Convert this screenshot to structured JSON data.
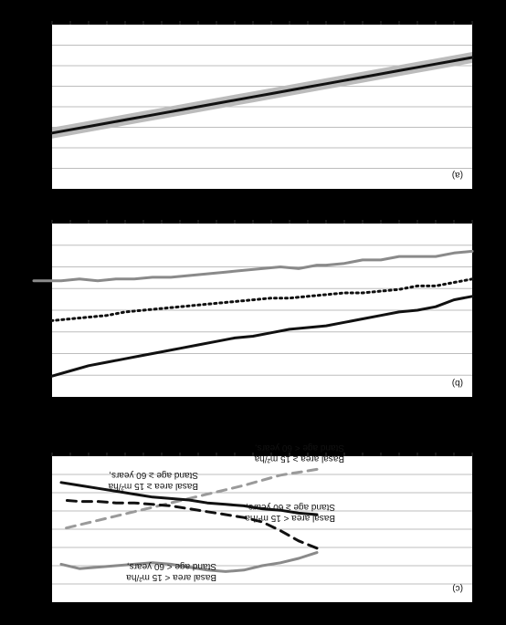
{
  "chart_data": [
    {
      "panel": "(c)",
      "type": "line",
      "ylim": [
        0,
        10
      ],
      "xlim": [
        0,
        46
      ],
      "grid": "horizontal",
      "rendering": "rotated-180",
      "series": [
        {
          "label": "Basal area ≥ 15 m²/ha Stand age < 60 years,",
          "style": "dashed-gray",
          "x": [
            17,
            21,
            25,
            29,
            33,
            37,
            41,
            45
          ],
          "y": [
            0.9,
            1.3,
            2.0,
            2.6,
            3.2,
            3.8,
            4.4,
            5.0
          ]
        },
        {
          "label": "Basal area ≥ 15 m²/ha Stand age ≥ 60 years,",
          "style": "solid-black",
          "x": [
            17,
            19,
            21,
            23,
            25,
            27,
            29,
            31,
            33,
            35,
            37,
            39,
            41,
            43,
            45
          ],
          "y": [
            4.0,
            3.9,
            3.7,
            3.6,
            3.4,
            3.3,
            3.2,
            3.0,
            2.9,
            2.8,
            2.6,
            2.4,
            2.2,
            2.0,
            1.8
          ]
        },
        {
          "label": "Basal area < 15 m²/ha Stand age ≥ 60 years,",
          "style": "dashed-black",
          "x": [
            17,
            19,
            21,
            23,
            25,
            27,
            29,
            31,
            33,
            35,
            37,
            39,
            41,
            43,
            45
          ],
          "y": [
            6.3,
            5.8,
            5.1,
            4.5,
            4.2,
            4.0,
            3.8,
            3.6,
            3.4,
            3.3,
            3.2,
            3.2,
            3.1,
            3.1,
            3.0
          ]
        },
        {
          "label": "Basal area < 15 m²/ha Stand age < 60 years,",
          "style": "solid-gray",
          "x": [
            17,
            19,
            21,
            23,
            25,
            27,
            29,
            31,
            33,
            35,
            37,
            39,
            41,
            43,
            45
          ],
          "y": [
            6.6,
            7.0,
            7.3,
            7.5,
            7.8,
            7.9,
            7.8,
            7.6,
            7.4,
            7.3,
            7.4,
            7.5,
            7.6,
            7.7,
            7.4
          ]
        }
      ]
    },
    {
      "panel": "(b)",
      "type": "line",
      "ylim": [
        0,
        10
      ],
      "xlim": [
        0,
        46
      ],
      "grid": "horizontal",
      "rendering": "rotated-180",
      "series": [
        {
          "style": "solid-gray",
          "x": [
            0,
            2,
            4,
            6,
            8,
            10,
            12,
            14,
            16,
            17,
            19,
            21,
            23,
            25,
            27,
            29,
            31,
            33,
            35,
            37,
            39,
            41,
            43,
            45,
            46,
            47,
            48
          ],
          "y": [
            1.6,
            1.7,
            1.9,
            1.9,
            1.9,
            2.1,
            2.1,
            2.3,
            2.4,
            2.4,
            2.6,
            2.5,
            2.6,
            2.7,
            2.8,
            2.9,
            3.0,
            3.1,
            3.1,
            3.2,
            3.2,
            3.3,
            3.2,
            3.3,
            3.3,
            3.3,
            3.3
          ]
        },
        {
          "style": "dotted-black",
          "x": [
            0,
            2,
            4,
            6,
            8,
            10,
            12,
            14,
            16,
            18,
            20,
            22,
            24,
            26,
            28,
            30,
            32,
            34,
            36,
            38,
            40,
            42,
            44,
            46
          ],
          "y": [
            3.2,
            3.4,
            3.6,
            3.6,
            3.8,
            3.9,
            4.0,
            4.0,
            4.1,
            4.2,
            4.3,
            4.3,
            4.4,
            4.5,
            4.6,
            4.7,
            4.8,
            4.9,
            5.0,
            5.1,
            5.3,
            5.4,
            5.5,
            5.6
          ]
        },
        {
          "style": "solid-black",
          "x": [
            0,
            2,
            4,
            6,
            8,
            10,
            12,
            14,
            16,
            18,
            20,
            22,
            24,
            26,
            28,
            30,
            32,
            34,
            36,
            38,
            40,
            42,
            44,
            46
          ],
          "y": [
            4.2,
            4.4,
            4.8,
            5.0,
            5.1,
            5.3,
            5.5,
            5.7,
            5.9,
            6.0,
            6.1,
            6.3,
            6.5,
            6.6,
            6.8,
            7.0,
            7.2,
            7.4,
            7.6,
            7.8,
            8.0,
            8.2,
            8.5,
            8.8
          ]
        }
      ]
    },
    {
      "panel": "(a)",
      "type": "line",
      "ylim": [
        0,
        10
      ],
      "xlim": [
        0,
        46
      ],
      "grid": "horizontal",
      "rendering": "rotated-180",
      "series": [
        {
          "style": "solid-black-with-gray-band",
          "x": [
            0,
            2,
            4,
            6,
            8,
            10,
            12,
            14,
            16,
            18,
            20,
            22,
            24,
            26,
            28,
            30,
            32,
            34,
            36,
            38,
            40,
            42,
            44,
            46
          ],
          "y": [
            2.0,
            2.2,
            2.4,
            2.6,
            2.8,
            3.0,
            3.2,
            3.4,
            3.6,
            3.8,
            4.0,
            4.2,
            4.4,
            4.6,
            4.8,
            5.0,
            5.2,
            5.4,
            5.6,
            5.8,
            6.0,
            6.2,
            6.4,
            6.6
          ]
        }
      ]
    }
  ]
}
